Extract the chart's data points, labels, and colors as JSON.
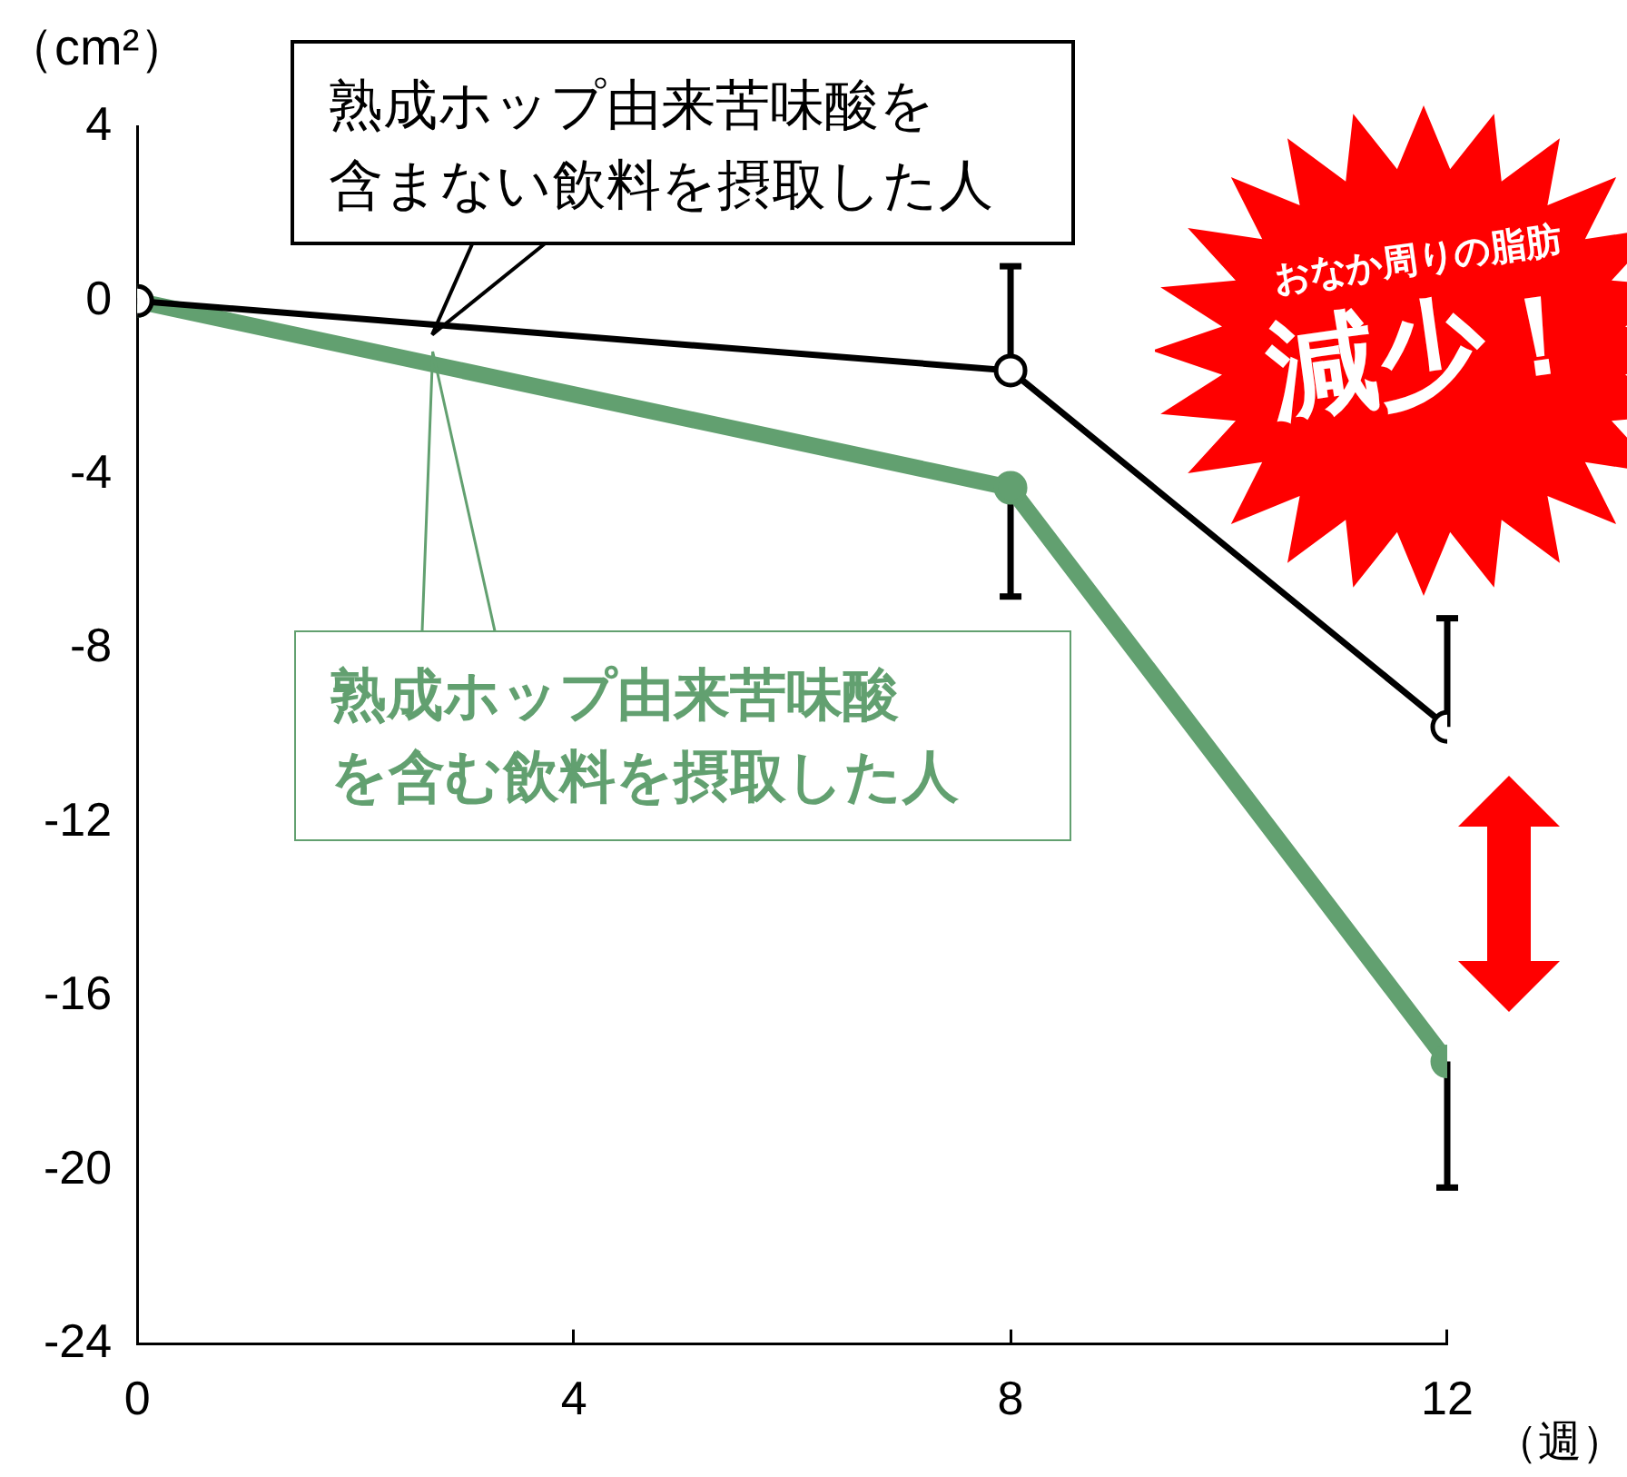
{
  "chart_data": {
    "type": "line",
    "x": [
      0,
      8,
      12
    ],
    "xlim": [
      0,
      12
    ],
    "xticks": [
      0,
      4,
      8,
      12
    ],
    "ylim": [
      -24,
      4
    ],
    "yticks": [
      -24,
      -20,
      -16,
      -12,
      -8,
      -4,
      0,
      4
    ],
    "ylabel": "（cm²）",
    "xlabel": "（週）",
    "grid": false,
    "legend": false,
    "marker": "circle",
    "series": [
      {
        "name": "熟成ホップ由来苦味酸を含まない飲料を摂取した人",
        "color": "#000000",
        "values": [
          0,
          -1.6,
          -9.8
        ],
        "errors": [
          null,
          [
            -1.6,
            0.8
          ],
          [
            -9.8,
            -7.3
          ]
        ]
      },
      {
        "name": "熟成ホップ由来苦味酸を含む飲料を摂取した人",
        "color": "#62a070",
        "values": [
          0,
          -4.3,
          -17.5
        ],
        "errors": [
          null,
          [
            -6.8,
            -4.3
          ],
          [
            -20.4,
            -17.5
          ]
        ]
      }
    ],
    "annotations": [
      "おなか周りの脂肪",
      "減少！"
    ]
  }
}
